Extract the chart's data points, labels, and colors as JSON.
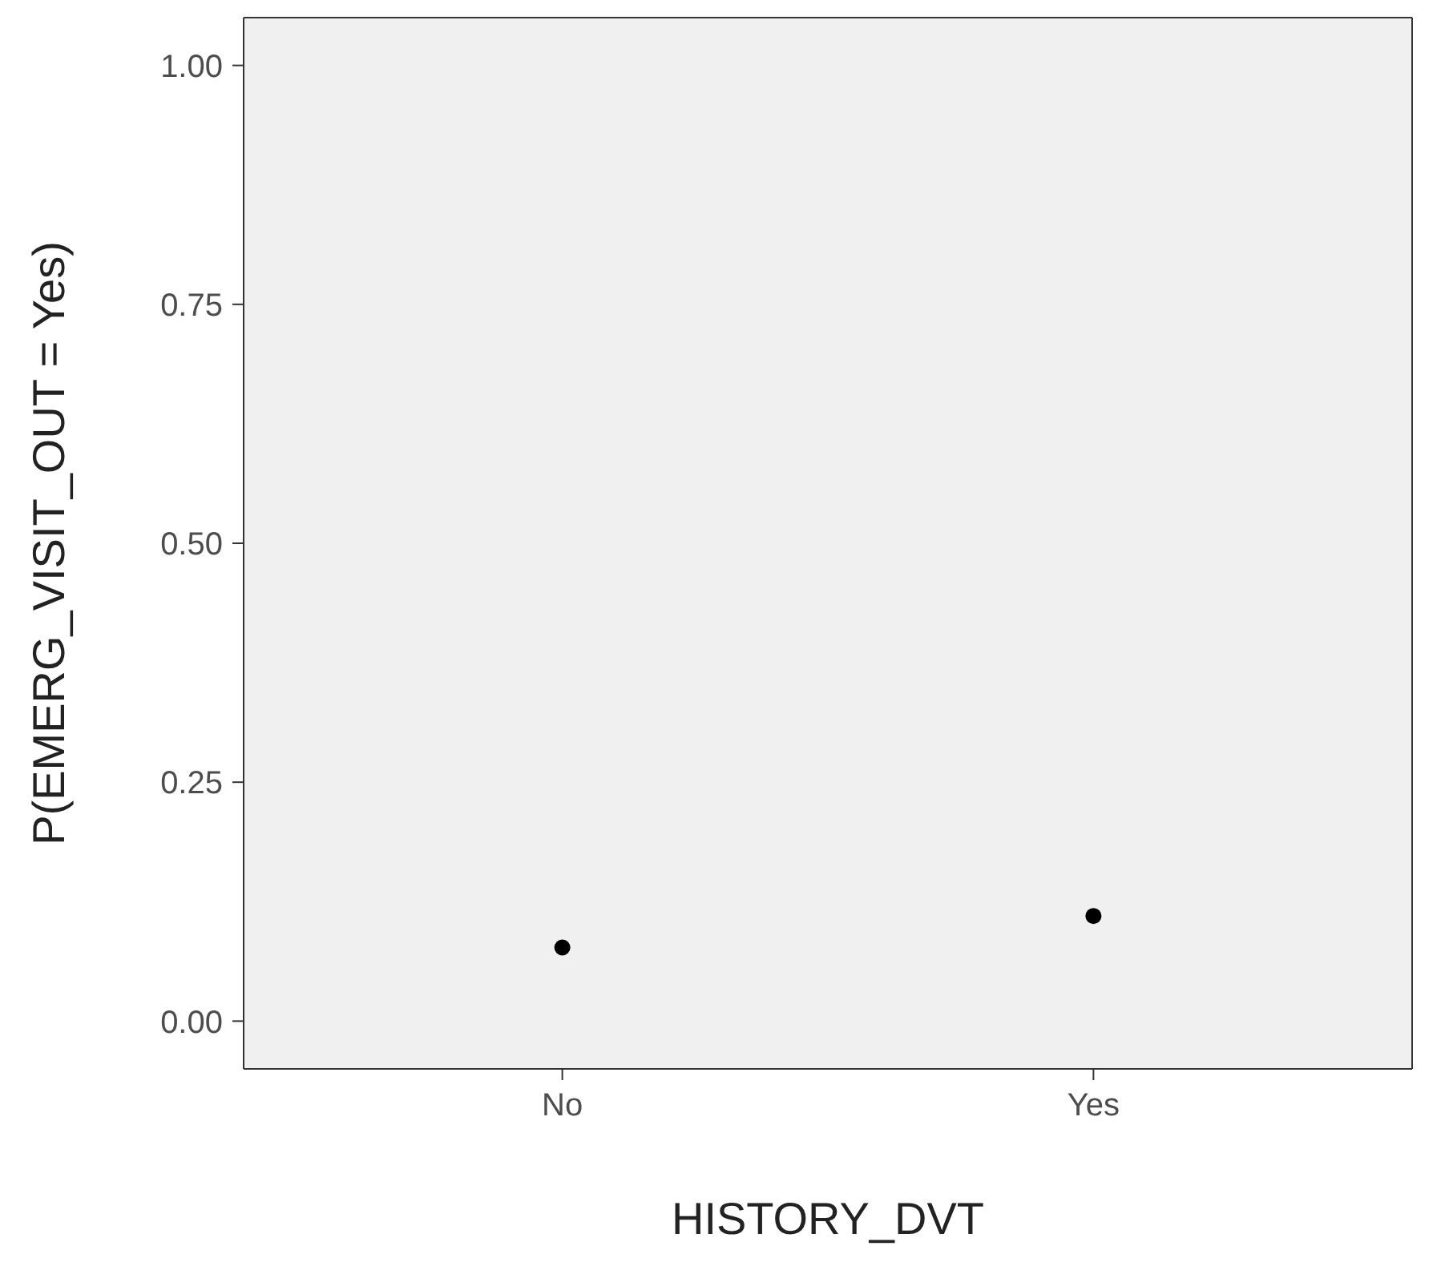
{
  "chart_data": {
    "type": "scatter",
    "xlabel": "HISTORY_DVT",
    "ylabel": "P(EMERG_VISIT_OUT = Yes)",
    "categories": [
      "No",
      "Yes"
    ],
    "values": [
      0.077,
      0.11
    ],
    "color": "#000000",
    "ylim": [
      -0.05,
      1.05
    ],
    "yticks": [
      {
        "value": 0,
        "label": "0.00"
      },
      {
        "value": 0.25,
        "label": "0.25"
      },
      {
        "value": 0.5,
        "label": "0.50"
      },
      {
        "value": 0.75,
        "label": "0.75"
      },
      {
        "value": 1,
        "label": "1.00"
      }
    ],
    "grid": false,
    "legend": false,
    "marker": "circle"
  }
}
